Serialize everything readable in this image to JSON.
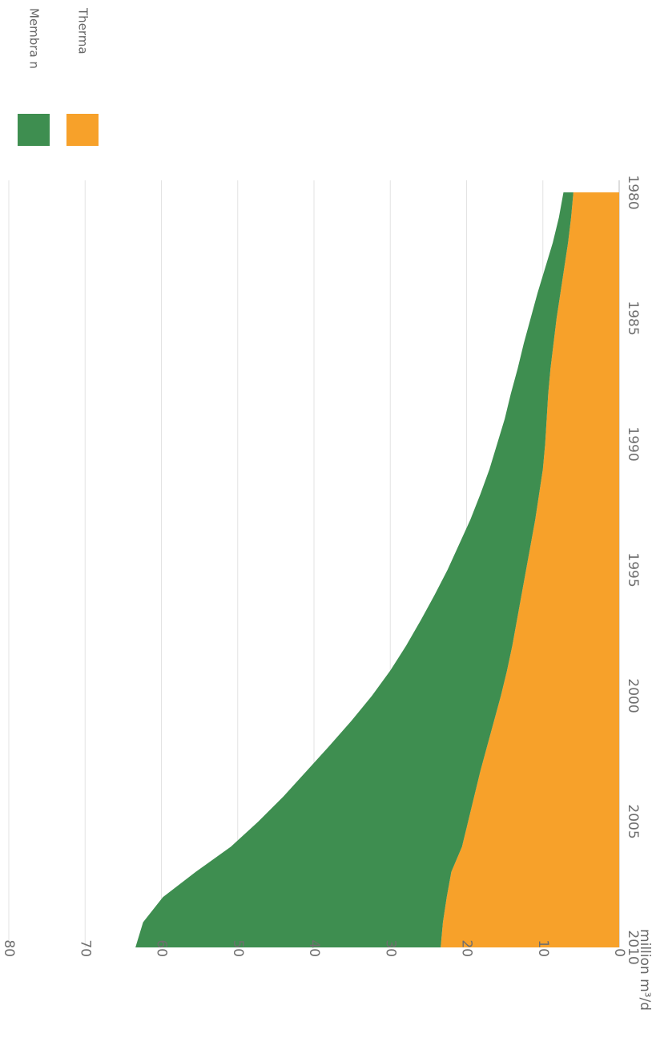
{
  "chart_data": {
    "type": "area",
    "stacked": true,
    "orientation": "rotated 90 degrees clockwise",
    "title": "",
    "xlabel": "",
    "ylabel": "million m³/d",
    "x_ticks": [
      "1980",
      "1985",
      "1990",
      "1995",
      "2000",
      "2005",
      "2010"
    ],
    "y_ticks": [
      "0",
      "10",
      "20",
      "30",
      "40",
      "50",
      "60",
      "70",
      "80"
    ],
    "xlim": [
      1980,
      2010
    ],
    "ylim": [
      0,
      80
    ],
    "grid": true,
    "legend_position": "top-right",
    "x": [
      1980,
      1981,
      1982,
      1983,
      1984,
      1985,
      1986,
      1987,
      1988,
      1989,
      1990,
      1991,
      1992,
      1993,
      1994,
      1995,
      1996,
      1997,
      1998,
      1999,
      2000,
      2001,
      2002,
      2003,
      2004,
      2005,
      2006,
      2007,
      2008,
      2009,
      2010
    ],
    "series": [
      {
        "name": "Thermal",
        "color": "#f7a12a",
        "values": [
          6.0,
          6.3,
          6.7,
          7.2,
          7.7,
          8.2,
          8.6,
          9.0,
          9.3,
          9.5,
          9.7,
          10.0,
          10.5,
          11.0,
          11.6,
          12.2,
          12.8,
          13.4,
          14.0,
          14.7,
          15.5,
          16.4,
          17.3,
          18.2,
          19.0,
          19.8,
          20.6,
          22.0,
          22.6,
          23.1,
          23.4
        ]
      },
      {
        "name": "Membrane",
        "color": "#3e8e50",
        "values": [
          1.3,
          1.6,
          2.0,
          2.5,
          3.0,
          3.4,
          3.9,
          4.3,
          4.9,
          5.5,
          6.3,
          7.0,
          7.7,
          8.5,
          9.4,
          10.3,
          11.4,
          12.6,
          13.9,
          15.3,
          16.9,
          18.7,
          20.7,
          22.8,
          25.0,
          27.5,
          30.3,
          33.5,
          37.2,
          39.3,
          40.0
        ]
      }
    ],
    "legend": [
      {
        "label": "Membra n",
        "color": "#3e8e50"
      },
      {
        "label": "Therma",
        "color": "#f7a12a"
      }
    ]
  }
}
